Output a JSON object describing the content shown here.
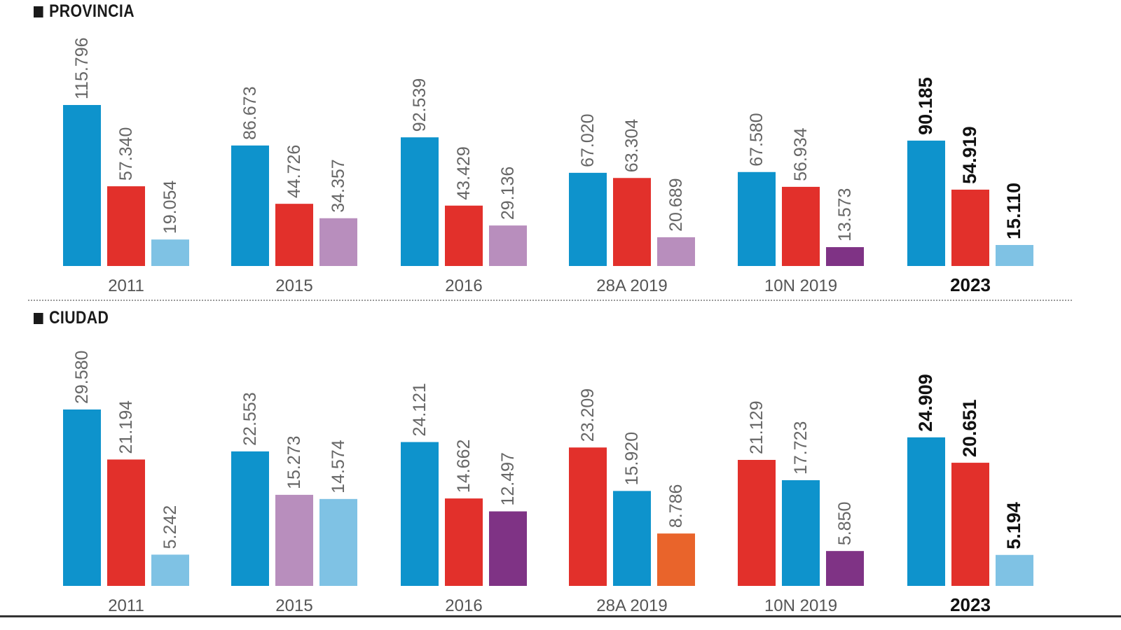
{
  "colors": {
    "pp": "#0e93cc",
    "psoe": "#e2302b",
    "light_blue": "#7fc2e4",
    "lilac": "#b88ebd",
    "purple": "#7f3385",
    "orange": "#e9642b"
  },
  "chart_data": [
    {
      "type": "bar",
      "title": "PROVINCIA",
      "categories": [
        "2011",
        "2015",
        "2016",
        "28A 2019",
        "10N 2019",
        "2023"
      ],
      "highlight_category": "2023",
      "groups": [
        {
          "category": "2011",
          "bars": [
            {
              "label": "115.796",
              "value": 115796,
              "color": "pp"
            },
            {
              "label": "57.340",
              "value": 57340,
              "color": "psoe"
            },
            {
              "label": "19.054",
              "value": 19054,
              "color": "light_blue"
            }
          ]
        },
        {
          "category": "2015",
          "bars": [
            {
              "label": "86.673",
              "value": 86673,
              "color": "pp"
            },
            {
              "label": "44.726",
              "value": 44726,
              "color": "psoe"
            },
            {
              "label": "34.357",
              "value": 34357,
              "color": "lilac"
            }
          ]
        },
        {
          "category": "2016",
          "bars": [
            {
              "label": "92.539",
              "value": 92539,
              "color": "pp"
            },
            {
              "label": "43.429",
              "value": 43429,
              "color": "psoe"
            },
            {
              "label": "29.136",
              "value": 29136,
              "color": "lilac"
            }
          ]
        },
        {
          "category": "28A 2019",
          "bars": [
            {
              "label": "67.020",
              "value": 67020,
              "color": "pp"
            },
            {
              "label": "63.304",
              "value": 63304,
              "color": "psoe"
            },
            {
              "label": "20.689",
              "value": 20689,
              "color": "lilac"
            }
          ]
        },
        {
          "category": "10N 2019",
          "bars": [
            {
              "label": "67.580",
              "value": 67580,
              "color": "pp"
            },
            {
              "label": "56.934",
              "value": 56934,
              "color": "psoe"
            },
            {
              "label": "13.573",
              "value": 13573,
              "color": "purple"
            }
          ]
        },
        {
          "category": "2023",
          "bars": [
            {
              "label": "90.185",
              "value": 90185,
              "color": "pp"
            },
            {
              "label": "54.919",
              "value": 54919,
              "color": "psoe"
            },
            {
              "label": "15.110",
              "value": 15110,
              "color": "light_blue"
            }
          ]
        }
      ],
      "ylim": [
        0,
        115796
      ]
    },
    {
      "type": "bar",
      "title": "CIUDAD",
      "categories": [
        "2011",
        "2015",
        "2016",
        "28A 2019",
        "10N 2019",
        "2023"
      ],
      "highlight_category": "2023",
      "groups": [
        {
          "category": "2011",
          "bars": [
            {
              "label": "29.580",
              "value": 29580,
              "color": "pp"
            },
            {
              "label": "21.194",
              "value": 21194,
              "color": "psoe"
            },
            {
              "label": "5.242",
              "value": 5242,
              "color": "light_blue"
            }
          ]
        },
        {
          "category": "2015",
          "bars": [
            {
              "label": "22.553",
              "value": 22553,
              "color": "pp"
            },
            {
              "label": "15.273",
              "value": 15273,
              "color": "lilac"
            },
            {
              "label": "14.574",
              "value": 14574,
              "color": "light_blue"
            }
          ]
        },
        {
          "category": "2016",
          "bars": [
            {
              "label": "24.121",
              "value": 24121,
              "color": "pp"
            },
            {
              "label": "14.662",
              "value": 14662,
              "color": "psoe"
            },
            {
              "label": "12.497",
              "value": 12497,
              "color": "purple"
            }
          ]
        },
        {
          "category": "28A 2019",
          "bars": [
            {
              "label": "23.209",
              "value": 23209,
              "color": "psoe"
            },
            {
              "label": "15.920",
              "value": 15920,
              "color": "pp"
            },
            {
              "label": "8.786",
              "value": 8786,
              "color": "orange"
            }
          ]
        },
        {
          "category": "10N 2019",
          "bars": [
            {
              "label": "21.129",
              "value": 21129,
              "color": "psoe"
            },
            {
              "label": "17.723",
              "value": 17723,
              "color": "pp"
            },
            {
              "label": "5.850",
              "value": 5850,
              "color": "purple"
            }
          ]
        },
        {
          "category": "2023",
          "bars": [
            {
              "label": "24.909",
              "value": 24909,
              "color": "pp"
            },
            {
              "label": "20.651",
              "value": 20651,
              "color": "psoe"
            },
            {
              "label": "5.194",
              "value": 5194,
              "color": "light_blue"
            }
          ]
        }
      ],
      "ylim": [
        0,
        29580
      ]
    }
  ]
}
